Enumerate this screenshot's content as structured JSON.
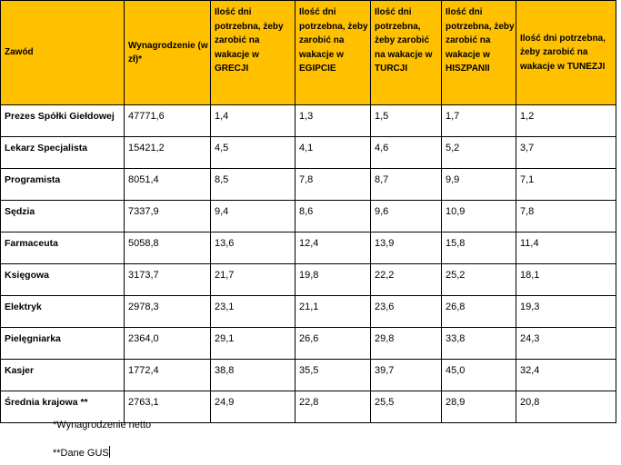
{
  "table": {
    "headers": [
      "Zawód",
      "Wynagrodzenie (w zł)*",
      "Ilość dni potrzebna, żeby zarobić na wakacje w GRECJI",
      "Ilość dni potrzebna, żeby zarobić na wakacje w EGIPCIE",
      "Ilość dni potrzebna, żeby zarobić na wakacje w TURCJI",
      "Ilość dni potrzebna, żeby zarobić na wakacje w HISZPANII",
      "Ilość dni potrzebna, żeby zarobić na wakacje w TUNEZJI"
    ],
    "rows": [
      [
        "Prezes Spółki Giełdowej",
        "47771,6",
        "1,4",
        "1,3",
        "1,5",
        "1,7",
        "1,2"
      ],
      [
        "Lekarz Specjalista",
        "15421,2",
        "4,5",
        "4,1",
        "4,6",
        "5,2",
        "3,7"
      ],
      [
        "Programista",
        "8051,4",
        "8,5",
        "7,8",
        "8,7",
        "9,9",
        "7,1"
      ],
      [
        "Sędzia",
        "7337,9",
        "9,4",
        "8,6",
        "9,6",
        "10,9",
        "7,8"
      ],
      [
        "Farmaceuta",
        "5058,8",
        "13,6",
        "12,4",
        "13,9",
        "15,8",
        "11,4"
      ],
      [
        "Księgowa",
        "3173,7",
        "21,7",
        "19,8",
        "22,2",
        "25,2",
        "18,1"
      ],
      [
        "Elektryk",
        "2978,3",
        "23,1",
        "21,1",
        "23,6",
        "26,8",
        "19,3"
      ],
      [
        "Pielęgniarka",
        "2364,0",
        "29,1",
        "26,6",
        "29,8",
        "33,8",
        "24,3"
      ],
      [
        "Kasjer",
        "1772,4",
        "38,8",
        "35,5",
        "39,7",
        "45,0",
        "32,4"
      ],
      [
        "Średnia krajowa **",
        "2763,1",
        "24,9",
        "22,8",
        "25,5",
        "28,9",
        "20,8"
      ]
    ]
  },
  "notes": {
    "net": "*Wynagrodzenie netto",
    "gus": "**Dane GUS"
  },
  "colors": {
    "header_bg": "#ffc000"
  }
}
